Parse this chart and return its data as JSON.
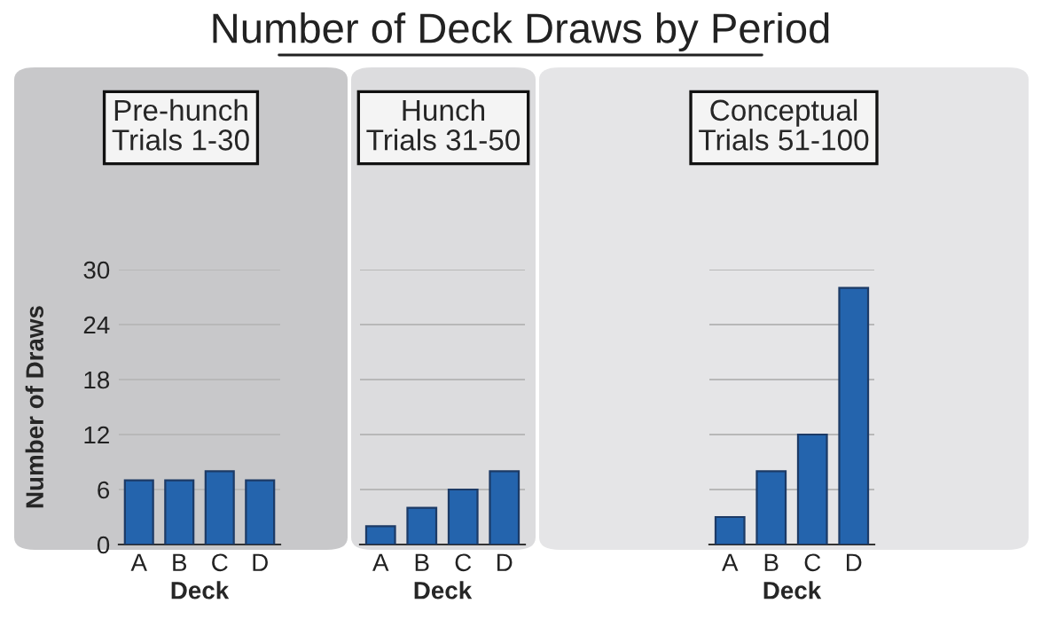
{
  "chart_data": [
    {
      "type": "bar",
      "title": "Pre-hunch",
      "subtitle": "Trials 1-30",
      "annotations": [
        "Number of Deck Draws by Period"
      ],
      "xlabel": "Deck",
      "ylabel": "Number of Draws",
      "categories": [
        "A",
        "B",
        "C",
        "D"
      ],
      "values": [
        7,
        7,
        8,
        7
      ],
      "color": "#2464ad",
      "ylim": [
        0,
        30
      ],
      "yticks": [
        0,
        6,
        12,
        18,
        24,
        30
      ],
      "grid": "y"
    },
    {
      "type": "bar",
      "title": "Hunch",
      "subtitle": "Trials 31-50",
      "xlabel": "Deck",
      "categories": [
        "A",
        "B",
        "C",
        "D"
      ],
      "values": [
        2,
        4,
        6,
        8
      ],
      "color": "#2464ad",
      "ylim": [
        0,
        30
      ],
      "yticks": [
        0,
        6,
        12,
        18,
        24,
        30
      ],
      "grid": "y",
      "tick_labels": "x"
    },
    {
      "type": "bar",
      "title": "Conceptual",
      "subtitle": "Trials 51-100",
      "xlabel": "Deck",
      "categories": [
        "A",
        "B",
        "C",
        "D"
      ],
      "values": [
        3,
        8,
        12,
        28
      ],
      "color": "#2464ad",
      "ylim": [
        0,
        30
      ],
      "yticks": [
        0,
        6,
        12,
        18,
        24,
        30
      ],
      "grid": "y",
      "tick_labels": "x"
    }
  ]
}
